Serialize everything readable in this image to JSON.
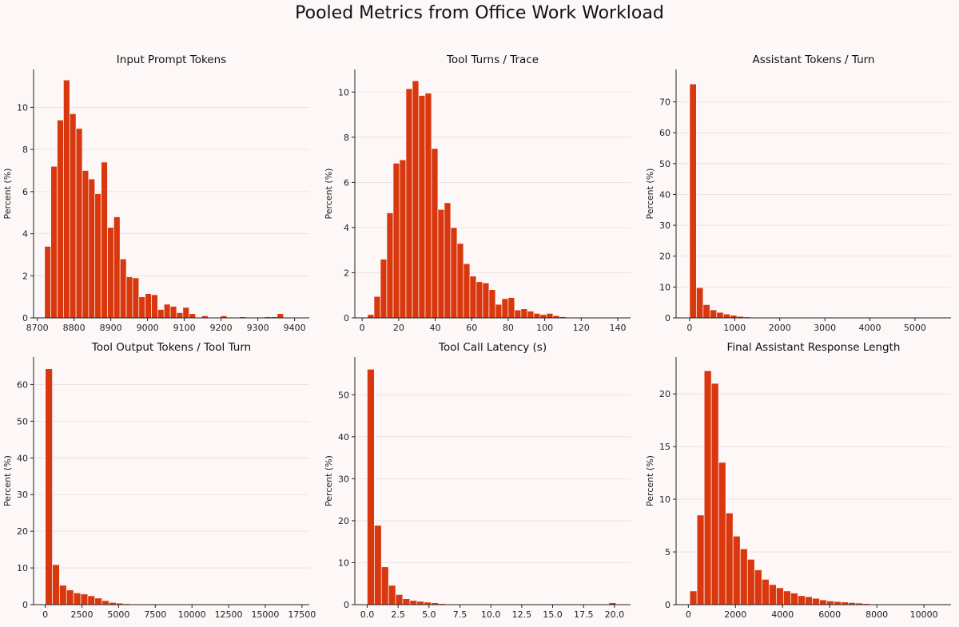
{
  "figure_title": "Pooled Metrics from Office Work Workload",
  "colors": {
    "bar": "#d9380f",
    "background": "#fdf7f7",
    "grid": "#e9dede"
  },
  "chart_data": [
    {
      "type": "bar",
      "title": "Input Prompt Tokens",
      "ylabel": "Percent (%)",
      "xlim": [
        8690,
        9440
      ],
      "ylim": [
        0,
        11.8
      ],
      "xticks": [
        8700,
        8800,
        8900,
        9000,
        9100,
        9200,
        9300,
        9400
      ],
      "yticks": [
        0,
        2,
        4,
        6,
        8,
        10
      ],
      "bin_start": 8720,
      "bin_width": 17.1,
      "values": [
        3.4,
        7.2,
        9.4,
        11.3,
        9.7,
        9.0,
        7.0,
        6.6,
        5.9,
        7.4,
        4.3,
        4.8,
        2.8,
        1.95,
        1.9,
        1.0,
        1.15,
        1.1,
        0.4,
        0.65,
        0.55,
        0.25,
        0.5,
        0.2,
        0.0,
        0.1,
        0.0,
        0.0,
        0.1,
        0.0,
        0.0,
        0.05,
        0.0,
        0.0,
        0.0,
        0.05,
        0.05,
        0.2
      ]
    },
    {
      "type": "bar",
      "title": "Tool Turns / Trace",
      "ylabel": "Percent (%)",
      "xlim": [
        -4,
        147
      ],
      "ylim": [
        0,
        11
      ],
      "xticks": [
        0,
        20,
        40,
        60,
        80,
        100,
        120,
        140
      ],
      "yticks": [
        0,
        2,
        4,
        6,
        8,
        10
      ],
      "bin_start": 3,
      "bin_width": 3.5,
      "values": [
        0.15,
        0.95,
        2.6,
        4.65,
        6.85,
        7.0,
        10.15,
        10.5,
        9.85,
        9.95,
        7.5,
        4.8,
        5.1,
        4.0,
        3.3,
        2.4,
        1.85,
        1.6,
        1.55,
        1.25,
        0.6,
        0.85,
        0.9,
        0.35,
        0.4,
        0.3,
        0.2,
        0.15,
        0.2,
        0.1,
        0.05,
        0.0,
        0.0,
        0.0,
        0.0
      ]
    },
    {
      "type": "bar",
      "title": "Assistant Tokens / Turn",
      "ylabel": "Percent (%)",
      "xlim": [
        -300,
        5800
      ],
      "ylim": [
        0,
        80.5
      ],
      "xticks": [
        0,
        1000,
        2000,
        3000,
        4000,
        5000
      ],
      "yticks": [
        0,
        10,
        20,
        30,
        40,
        50,
        60,
        70
      ],
      "bin_start": 0,
      "bin_width": 150,
      "values": [
        75.8,
        9.8,
        4.3,
        2.6,
        1.8,
        1.25,
        0.85,
        0.5,
        0.3,
        0.2,
        0.15,
        0.1,
        0.05,
        0.05,
        0.03,
        0.0,
        0.0,
        0.0,
        0.0,
        0.0,
        0.0,
        0.0,
        0.0,
        0.0,
        0.0,
        0.0,
        0.0,
        0.0,
        0.0,
        0.0,
        0.0,
        0.0,
        0.0,
        0.0,
        0.0,
        0.0,
        0.0,
        0.0
      ]
    },
    {
      "type": "bar",
      "title": "Tool Output Tokens / Tool Turn",
      "ylabel": "Percent (%)",
      "xlim": [
        -800,
        18000
      ],
      "ylim": [
        0,
        67.5
      ],
      "xticks": [
        0,
        2500,
        5000,
        7500,
        10000,
        12500,
        15000,
        17500
      ],
      "yticks": [
        0,
        10,
        20,
        30,
        40,
        50,
        60
      ],
      "bin_start": 0,
      "bin_width": 483,
      "values": [
        64.3,
        10.9,
        5.3,
        4.0,
        3.2,
        2.9,
        2.4,
        1.8,
        1.1,
        0.6,
        0.4,
        0.25,
        0.15,
        0.1,
        0.05,
        0.05,
        0.03,
        0.03,
        0.0,
        0.0,
        0.0,
        0.0,
        0.0,
        0.0,
        0.0,
        0.0,
        0.0,
        0.0,
        0.0,
        0.0,
        0.0,
        0.0,
        0.0,
        0.0,
        0.0,
        0.0
      ]
    },
    {
      "type": "bar",
      "title": "Tool Call Latency (s)",
      "ylabel": "Percent (%)",
      "xlim": [
        -1.0,
        21.3
      ],
      "ylim": [
        0,
        59
      ],
      "xticks": [
        0.0,
        2.5,
        5.0,
        7.5,
        10.0,
        12.5,
        15.0,
        17.5,
        20.0
      ],
      "yticks": [
        0,
        10,
        20,
        30,
        40,
        50
      ],
      "bin_start": 0,
      "bin_width": 0.575,
      "values": [
        56.1,
        18.9,
        9.0,
        4.6,
        2.4,
        1.4,
        1.0,
        0.8,
        0.6,
        0.45,
        0.25,
        0.15,
        0.1,
        0.05,
        0.03,
        0.0,
        0.0,
        0.0,
        0.0,
        0.0,
        0.0,
        0.0,
        0.0,
        0.0,
        0.0,
        0.0,
        0.0,
        0.0,
        0.0,
        0.0,
        0.0,
        0.0,
        0.0,
        0.0,
        0.45
      ]
    },
    {
      "type": "bar",
      "title": "Final Assistant Response Length",
      "ylabel": "Percent (%)",
      "xlim": [
        -520,
        11150
      ],
      "ylim": [
        0,
        23.5
      ],
      "xticks": [
        0,
        2000,
        4000,
        6000,
        8000,
        10000
      ],
      "yticks": [
        0,
        5,
        10,
        15,
        20
      ],
      "bin_start": 60,
      "bin_width": 306,
      "values": [
        1.3,
        8.5,
        22.2,
        21.0,
        13.5,
        8.7,
        6.5,
        5.3,
        4.3,
        3.3,
        2.4,
        1.9,
        1.6,
        1.3,
        1.1,
        0.85,
        0.75,
        0.6,
        0.45,
        0.35,
        0.3,
        0.25,
        0.2,
        0.15,
        0.1,
        0.05,
        0.05,
        0.05,
        0.03,
        0.0,
        0.0,
        0.0,
        0.0,
        0.0,
        0.0
      ]
    }
  ]
}
